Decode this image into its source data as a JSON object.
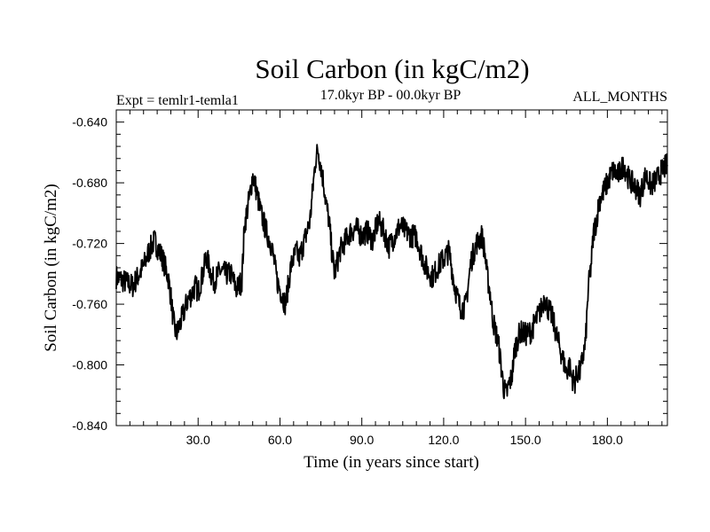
{
  "chart_data": {
    "type": "line",
    "title": "Soil Carbon (in kgC/m2)",
    "subtitle_left": "Expt = temlr1-temla1",
    "subtitle_center": "17.0kyr BP - 00.0kyr BP",
    "subtitle_right": "ALL_MONTHS",
    "xlabel": "Time (in years since start)",
    "ylabel": "Soil Carbon (in kgC/m2)",
    "xlim": [
      0,
      202
    ],
    "ylim": [
      -0.84,
      -0.632
    ],
    "x_ticks": [
      30,
      60,
      90,
      120,
      150,
      180
    ],
    "x_tick_labels": [
      "30.0",
      "60.0",
      "90.0",
      "120.0",
      "150.0",
      "180.0"
    ],
    "y_ticks": [
      -0.84,
      -0.8,
      -0.76,
      -0.72,
      -0.68,
      -0.64
    ],
    "y_tick_labels": [
      "-0.840",
      "-0.800",
      "-0.760",
      "-0.720",
      "-0.680",
      "-0.640"
    ],
    "series": [
      {
        "name": "Soil Carbon",
        "color": "#000000",
        "x": [
          0,
          3,
          6,
          10,
          12,
          14,
          17,
          19,
          20,
          21,
          22,
          24,
          26,
          28,
          29,
          30,
          32,
          33,
          35,
          36,
          38,
          40,
          42,
          44,
          46,
          47,
          49,
          50,
          51,
          53,
          55,
          57,
          59,
          61,
          62,
          63,
          64,
          66,
          67,
          69,
          71,
          72,
          73,
          74,
          76,
          77,
          78,
          79,
          80,
          82,
          84,
          86,
          88,
          90,
          92,
          94,
          96,
          98,
          100,
          102,
          104,
          106,
          108,
          110,
          112,
          114,
          116,
          118,
          120,
          122,
          124,
          126,
          128,
          130,
          132,
          134,
          135,
          136,
          137,
          138,
          139,
          140,
          141,
          142,
          143,
          144,
          145,
          146,
          148,
          150,
          152,
          154,
          156,
          157,
          158,
          159,
          160,
          162,
          164,
          165,
          166,
          167,
          168,
          169,
          170,
          171,
          172,
          173,
          174,
          175,
          176,
          177,
          178,
          180,
          182,
          184,
          186,
          188,
          190,
          192,
          194,
          196,
          198,
          200,
          202
        ],
        "values": [
          -0.742,
          -0.745,
          -0.748,
          -0.735,
          -0.725,
          -0.718,
          -0.73,
          -0.742,
          -0.755,
          -0.772,
          -0.78,
          -0.77,
          -0.758,
          -0.752,
          -0.748,
          -0.752,
          -0.738,
          -0.728,
          -0.742,
          -0.745,
          -0.738,
          -0.74,
          -0.74,
          -0.75,
          -0.745,
          -0.708,
          -0.688,
          -0.675,
          -0.682,
          -0.7,
          -0.712,
          -0.722,
          -0.745,
          -0.755,
          -0.76,
          -0.748,
          -0.735,
          -0.725,
          -0.73,
          -0.718,
          -0.705,
          -0.685,
          -0.665,
          -0.658,
          -0.68,
          -0.695,
          -0.705,
          -0.725,
          -0.74,
          -0.725,
          -0.718,
          -0.712,
          -0.71,
          -0.715,
          -0.712,
          -0.718,
          -0.705,
          -0.712,
          -0.722,
          -0.715,
          -0.708,
          -0.712,
          -0.715,
          -0.715,
          -0.728,
          -0.738,
          -0.742,
          -0.735,
          -0.73,
          -0.725,
          -0.748,
          -0.762,
          -0.762,
          -0.732,
          -0.72,
          -0.715,
          -0.725,
          -0.742,
          -0.752,
          -0.77,
          -0.778,
          -0.785,
          -0.8,
          -0.815,
          -0.82,
          -0.812,
          -0.808,
          -0.79,
          -0.778,
          -0.78,
          -0.778,
          -0.77,
          -0.762,
          -0.755,
          -0.762,
          -0.765,
          -0.77,
          -0.785,
          -0.798,
          -0.805,
          -0.8,
          -0.808,
          -0.812,
          -0.805,
          -0.805,
          -0.795,
          -0.785,
          -0.75,
          -0.735,
          -0.712,
          -0.705,
          -0.692,
          -0.688,
          -0.68,
          -0.672,
          -0.675,
          -0.668,
          -0.678,
          -0.682,
          -0.688,
          -0.675,
          -0.682,
          -0.678,
          -0.672,
          -0.668
        ]
      }
    ]
  }
}
